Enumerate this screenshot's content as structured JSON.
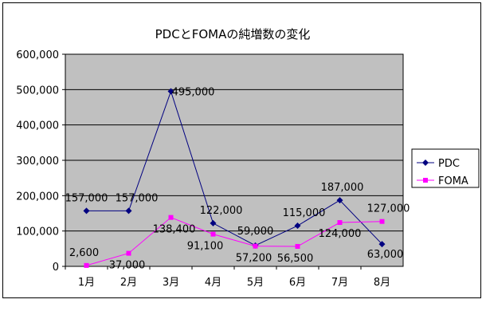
{
  "chart_data": {
    "type": "line",
    "title": "PDCとFOMAの純増数の変化",
    "xlabel": "",
    "ylabel": "",
    "categories": [
      "1月",
      "2月",
      "3月",
      "4月",
      "5月",
      "6月",
      "7月",
      "8月"
    ],
    "ylim": [
      0,
      600000
    ],
    "yticks": [
      0,
      100000,
      200000,
      300000,
      400000,
      500000,
      600000
    ],
    "ytick_labels": [
      "0",
      "100,000",
      "200,000",
      "300,000",
      "400,000",
      "500,000",
      "600,000"
    ],
    "grid": true,
    "legend_position": "right",
    "plot_background": "#c0c0c0",
    "series": [
      {
        "name": "PDC",
        "color": "#000080",
        "marker": "diamond",
        "values": [
          157000,
          157000,
          495000,
          122000,
          59000,
          115000,
          187000,
          63000
        ],
        "labels": [
          "157,000",
          "157,000",
          "495,000",
          "122,000",
          "59,000",
          "115,000",
          "187,000",
          "63,000"
        ]
      },
      {
        "name": "FOMA",
        "color": "#ff00ff",
        "marker": "square",
        "values": [
          2600,
          37000,
          138400,
          91100,
          57200,
          56500,
          124000,
          127000
        ],
        "labels": [
          "2,600",
          "37,000",
          "138,400",
          "91,100",
          "57,200",
          "56,500",
          "124,000",
          "127,000"
        ]
      }
    ]
  }
}
